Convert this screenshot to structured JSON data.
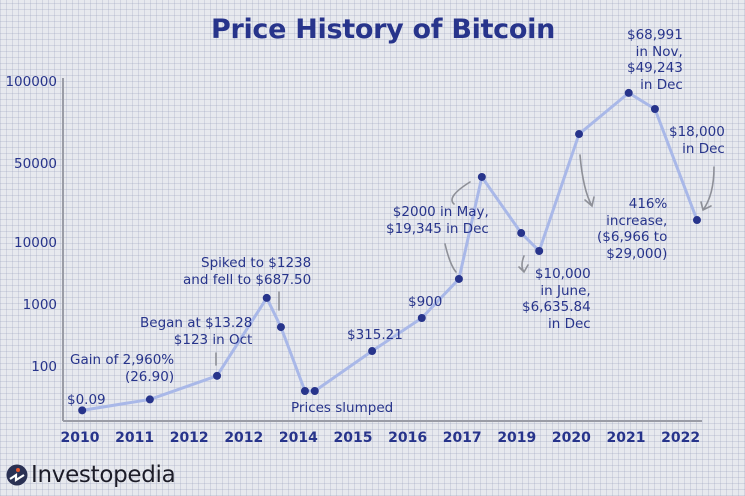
{
  "chart_data": {
    "type": "line",
    "title": "Price History of Bitcoin",
    "xlabel": "",
    "ylabel": "",
    "y_scale": "non-uniform (log-like)",
    "y_ticks": [
      "100000",
      "50000",
      "10000",
      "1000",
      "100"
    ],
    "x_ticks": [
      "2010",
      "2011",
      "2012",
      "2012",
      "2014",
      "2015",
      "2016",
      "2017",
      "2019",
      "2020",
      "2021",
      "2022"
    ],
    "grid": true,
    "line_color": "#a9b8e8",
    "marker_color": "#27348b",
    "points": [
      {
        "x": 0.04,
        "y": 20
      },
      {
        "x": 1.28,
        "y": 30
      },
      {
        "x": 2.51,
        "y": 72
      },
      {
        "x": 3.42,
        "y": 1300
      },
      {
        "x": 3.68,
        "y": 440
      },
      {
        "x": 4.12,
        "y": 41
      },
      {
        "x": 4.3,
        "y": 41
      },
      {
        "x": 5.35,
        "y": 181
      },
      {
        "x": 6.26,
        "y": 617
      },
      {
        "x": 6.94,
        "y": 2630
      },
      {
        "x": 7.36,
        "y": 38400
      },
      {
        "x": 8.08,
        "y": 12250
      },
      {
        "x": 8.41,
        "y": 7430
      },
      {
        "x": 9.14,
        "y": 64400
      },
      {
        "x": 10.05,
        "y": 91200
      },
      {
        "x": 10.53,
        "y": 79600
      },
      {
        "x": 11.3,
        "y": 15970
      }
    ],
    "annotations": {
      "a2010": [
        "$0.09"
      ],
      "gain": [
        "Gain of 2,960%",
        "(26.90)"
      ],
      "began": [
        "Began at $13.28",
        "$123 in Oct"
      ],
      "spiked": [
        "Spiked to $1238",
        "and fell to $687.50"
      ],
      "slumped": [
        "Prices slumped"
      ],
      "p315": [
        "$315.21"
      ],
      "p900": [
        "$900"
      ],
      "p2000": [
        "$2000 in May,",
        "$19,345 in Dec"
      ],
      "p10000": [
        "$10,000",
        "in June,",
        "$6,635.84",
        "in Dec"
      ],
      "p416": [
        "416%",
        "increase,",
        "($6,966 to",
        "$29,000)"
      ],
      "p68991": [
        "$68,991",
        "in Nov,",
        "$49,243",
        "in Dec"
      ],
      "p18000": [
        "$18,000",
        "in Dec"
      ]
    }
  },
  "brand": {
    "name": "Investopedia"
  }
}
